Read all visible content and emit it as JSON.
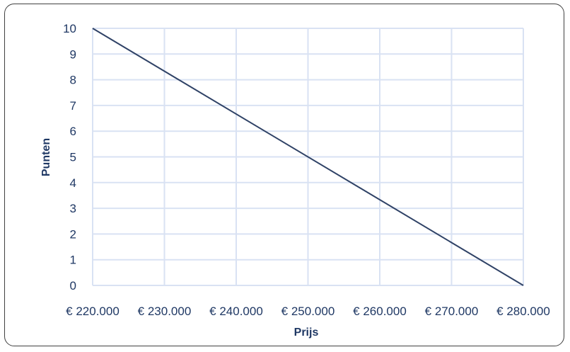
{
  "chart_data": {
    "type": "line",
    "title": "",
    "xlabel": "Prijs",
    "ylabel": "Punten",
    "x": [
      220000,
      230000,
      240000,
      250000,
      260000,
      270000,
      280000
    ],
    "x_tick_labels": [
      "€ 220.000",
      "€ 230.000",
      "€ 240.000",
      "€ 250.000",
      "€ 260.000",
      "€ 270.000",
      "€ 280.000"
    ],
    "y_ticks": [
      0,
      1,
      2,
      3,
      4,
      5,
      6,
      7,
      8,
      9,
      10
    ],
    "xlim": [
      220000,
      280000
    ],
    "ylim": [
      0,
      10
    ],
    "grid": true,
    "legend": "none",
    "series": [
      {
        "points": [
          [
            220000,
            10
          ],
          [
            280000,
            0
          ]
        ]
      }
    ],
    "colors": {
      "line": "#2f4266",
      "grid": "#d9e2f3",
      "text": "#1f3864",
      "frame": "#404040"
    }
  }
}
